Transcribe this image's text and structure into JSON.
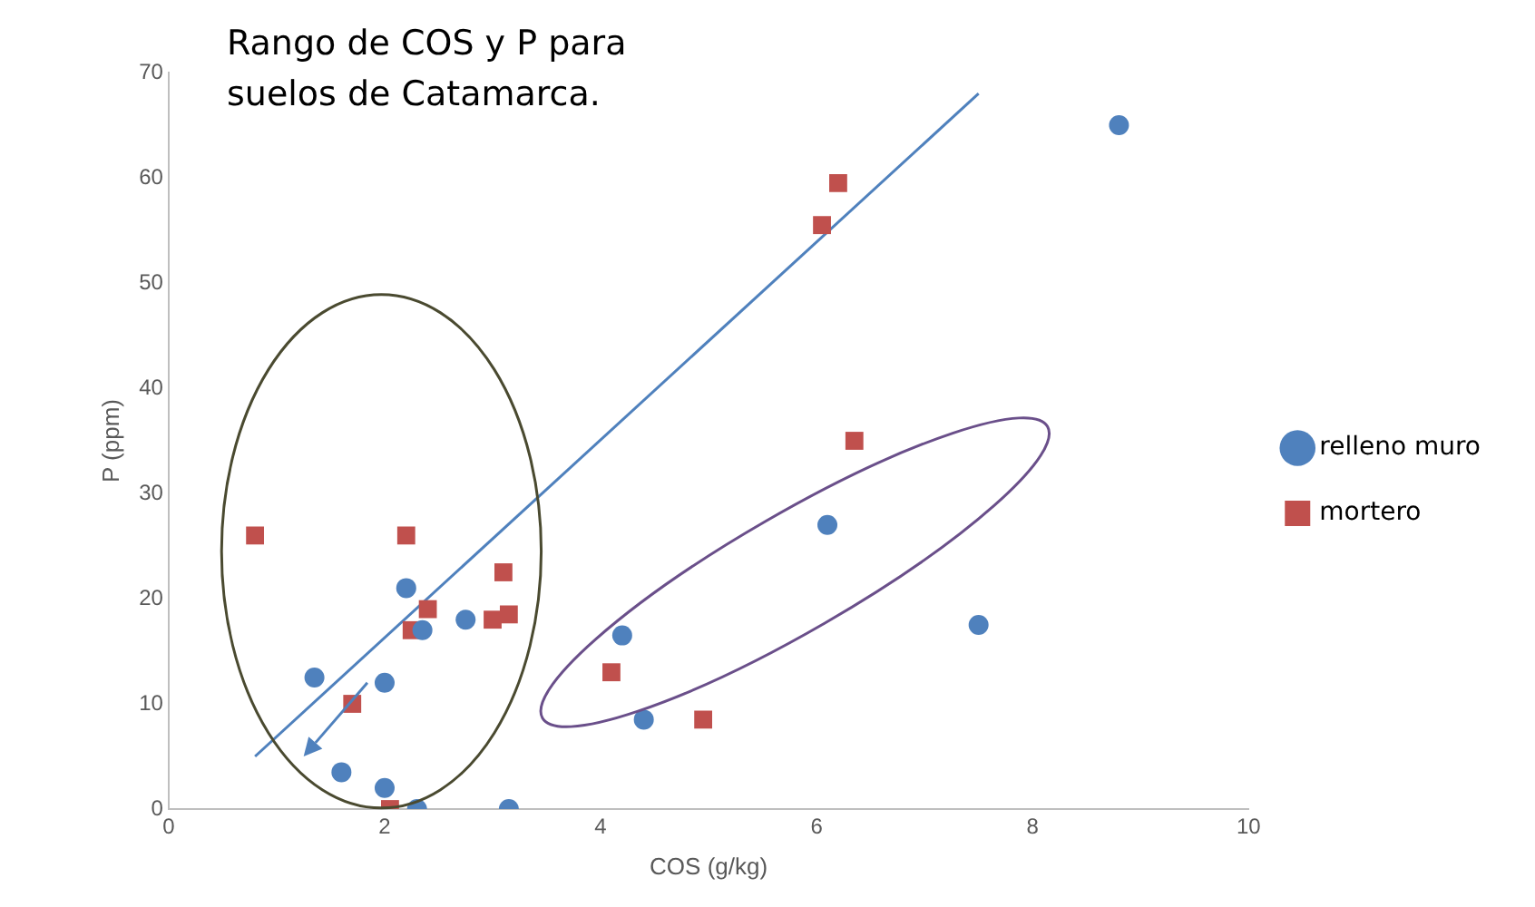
{
  "chart_data": {
    "type": "scatter",
    "title": "Rango de COS y P para suelos de Catamarca.",
    "xlabel": "COS (g/kg)",
    "ylabel": "P (ppm)",
    "xlim": [
      0,
      10
    ],
    "xticks": [
      0,
      2,
      4,
      6,
      8,
      10
    ],
    "ylim": [
      0,
      70
    ],
    "yticks": [
      0,
      10,
      20,
      30,
      40,
      50,
      60,
      70
    ],
    "grid": false,
    "legend": "right",
    "series": [
      {
        "name": "relleno muro",
        "color": "#4f81bd",
        "marker": "circle",
        "x": [
          8.8,
          6.1,
          7.5,
          4.2,
          4.4,
          2.2,
          2.35,
          2.75,
          1.35,
          2.0,
          1.6,
          2.0,
          2.3,
          3.15
        ],
        "values": [
          65,
          27,
          17.5,
          16.5,
          8.5,
          21,
          17,
          18,
          12.5,
          12,
          3.5,
          2,
          0,
          0
        ]
      },
      {
        "name": "mortero",
        "color": "#c0504d",
        "marker": "square",
        "x": [
          0.8,
          2.2,
          2.4,
          2.25,
          3.0,
          3.1,
          3.15,
          1.7,
          2.05,
          6.05,
          6.2,
          6.35,
          4.1,
          4.95
        ],
        "values": [
          26,
          26,
          19,
          17,
          18,
          22.5,
          18.5,
          10,
          0,
          55.5,
          59.5,
          35,
          13,
          8.5
        ]
      },
      {
        "type": "line",
        "color": "#4f81bd",
        "marker": "none",
        "x": [
          0.8,
          7.5
        ],
        "values": [
          5,
          68
        ]
      }
    ]
  }
}
